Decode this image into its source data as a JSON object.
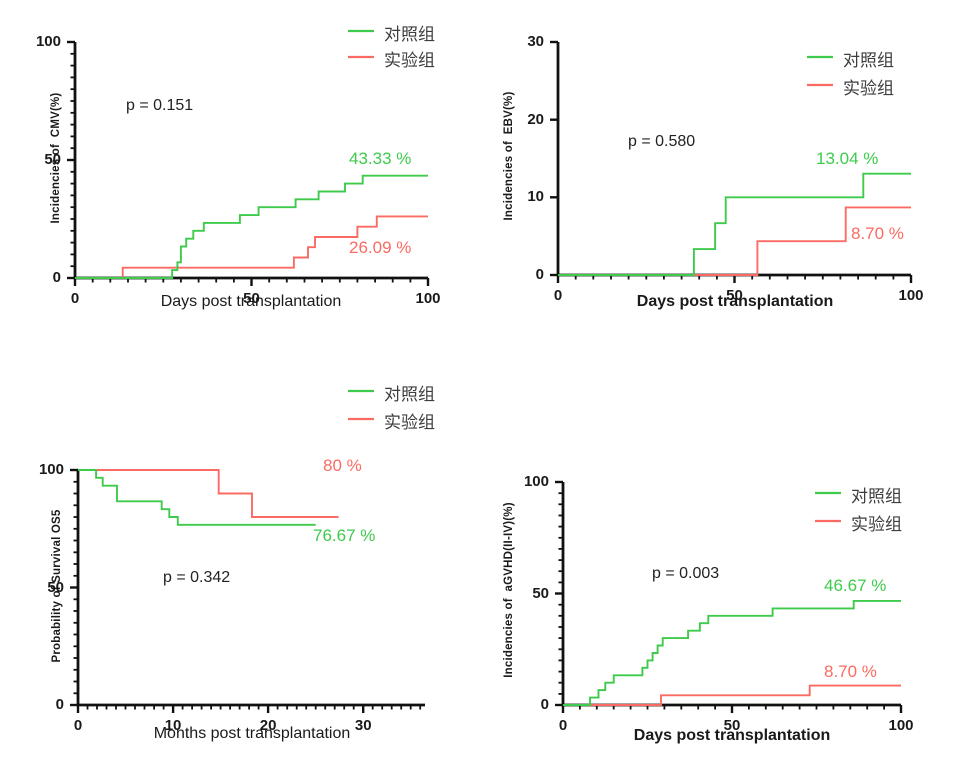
{
  "figure": {
    "background": "#ffffff"
  },
  "colors": {
    "green": "#3ECB4C",
    "red": "#FB6B63",
    "axis": "#111111",
    "text": "#1a1a1a",
    "legend_text": "#3d3d3d"
  },
  "chart_data": [
    {
      "key": "cmv",
      "type": "line",
      "subtype": "kaplan-meier-step",
      "ylabel": "Incidencies of  CMV(%)",
      "xlabel": "Days post transplantation",
      "p_label": "p = 0.151",
      "xlim": [
        0,
        100
      ],
      "ylim": [
        0,
        100
      ],
      "xticks": [
        0,
        50,
        100
      ],
      "yticks": [
        0,
        50,
        100
      ],
      "x_minor": 5,
      "y_minor": 5,
      "legend": [
        {
          "role": "control",
          "label": "对照组",
          "color": "green"
        },
        {
          "role": "experimental",
          "label": "实验组",
          "color": "red"
        }
      ],
      "series": [
        {
          "name": "对照组",
          "role": "control",
          "color": "green",
          "end_label": "43.33 %",
          "end_x": 100,
          "steps": [
            [
              0,
              0
            ],
            [
              27.5,
              3.33
            ],
            [
              29,
              6.67
            ],
            [
              30,
              13.33
            ],
            [
              31.5,
              16.67
            ],
            [
              33.5,
              20
            ],
            [
              36.5,
              23.33
            ],
            [
              46.7,
              26.67
            ],
            [
              52,
              30
            ],
            [
              62.5,
              33.33
            ],
            [
              69,
              36.67
            ],
            [
              76.5,
              40
            ],
            [
              81.5,
              43.33
            ]
          ]
        },
        {
          "name": "实验组",
          "role": "experimental",
          "color": "red",
          "end_label": "26.09 %",
          "end_x": 100,
          "steps": [
            [
              0,
              0
            ],
            [
              13.5,
              4.35
            ],
            [
              62,
              8.7
            ],
            [
              66,
              13.04
            ],
            [
              68,
              17.39
            ],
            [
              80,
              21.74
            ],
            [
              85.5,
              26.09
            ]
          ]
        }
      ]
    },
    {
      "key": "ebv",
      "type": "line",
      "subtype": "kaplan-meier-step",
      "ylabel": "Incidencies of  EBV(%)",
      "xlabel": "Days post transplantation",
      "p_label": "p = 0.580",
      "xlim": [
        0,
        100
      ],
      "ylim": [
        0,
        30
      ],
      "xticks": [
        0,
        50,
        100
      ],
      "yticks": [
        0,
        10,
        20,
        30
      ],
      "x_minor": 5,
      "y_minor": 0,
      "legend": [
        {
          "role": "control",
          "label": "对照组",
          "color": "green"
        },
        {
          "role": "experimental",
          "label": "实验组",
          "color": "red"
        }
      ],
      "series": [
        {
          "name": "对照组",
          "role": "control",
          "color": "green",
          "end_label": "13.04 %",
          "end_x": 100,
          "steps": [
            [
              0,
              0
            ],
            [
              38.5,
              3.33
            ],
            [
              44.5,
              6.67
            ],
            [
              47.5,
              10
            ],
            [
              86.5,
              13.04
            ]
          ]
        },
        {
          "name": "实验组",
          "role": "experimental",
          "color": "red",
          "end_label": "8.70 %",
          "end_x": 100,
          "steps": [
            [
              0,
              0
            ],
            [
              56.5,
              4.35
            ],
            [
              81.5,
              8.7
            ]
          ]
        }
      ]
    },
    {
      "key": "os5",
      "type": "line",
      "subtype": "kaplan-meier-step",
      "ylabel": "Probability of Survival OS5",
      "xlabel": "Months post transplantation",
      "p_label": "p = 0.342",
      "xlim": [
        0,
        36.5
      ],
      "ylim": [
        0,
        100
      ],
      "xticks": [
        0,
        10,
        20,
        30
      ],
      "yticks": [
        0,
        50,
        100
      ],
      "x_minor": 1,
      "y_minor": 5,
      "legend": [
        {
          "role": "control",
          "label": "对照组",
          "color": "green"
        },
        {
          "role": "experimental",
          "label": "实验组",
          "color": "red"
        }
      ],
      "series": [
        {
          "name": "对照组",
          "role": "control",
          "color": "green",
          "end_label": "76.67 %",
          "end_x": 25,
          "steps": [
            [
              0,
              100
            ],
            [
              1.9,
              96.67
            ],
            [
              2.6,
              93.33
            ],
            [
              4.1,
              86.67
            ],
            [
              8.8,
              83.33
            ],
            [
              9.6,
              80
            ],
            [
              10.5,
              76.67
            ]
          ]
        },
        {
          "name": "实验组",
          "role": "experimental",
          "color": "red",
          "end_label": "80 %",
          "end_x": 27.4,
          "steps": [
            [
              0,
              100
            ],
            [
              14.8,
              90
            ],
            [
              18.3,
              80
            ]
          ]
        }
      ]
    },
    {
      "key": "agvhd",
      "type": "line",
      "subtype": "kaplan-meier-step",
      "ylabel": "Incidencies of  aGVHD(II-IV)(%)",
      "xlabel": "Days post transplantation",
      "p_label": "p = 0.003",
      "xlim": [
        0,
        100
      ],
      "ylim": [
        0,
        100
      ],
      "xticks": [
        0,
        50,
        100
      ],
      "yticks": [
        0,
        50,
        100
      ],
      "x_minor": 5,
      "y_minor": 5,
      "legend": [
        {
          "role": "control",
          "label": "对照组",
          "color": "green"
        },
        {
          "role": "experimental",
          "label": "实验组",
          "color": "red"
        }
      ],
      "series": [
        {
          "name": "对照组",
          "role": "control",
          "color": "green",
          "end_label": "46.67 %",
          "end_x": 100,
          "steps": [
            [
              0,
              0
            ],
            [
              8,
              3.33
            ],
            [
              10.5,
              6.67
            ],
            [
              12.5,
              10
            ],
            [
              15,
              13.33
            ],
            [
              23.5,
              16.67
            ],
            [
              25,
              20
            ],
            [
              26.5,
              23.33
            ],
            [
              28,
              26.67
            ],
            [
              29.5,
              30
            ],
            [
              37,
              33.33
            ],
            [
              40.5,
              36.67
            ],
            [
              43,
              40
            ],
            [
              62,
              43.33
            ],
            [
              86,
              46.67
            ]
          ]
        },
        {
          "name": "实验组",
          "role": "experimental",
          "color": "red",
          "end_label": "8.70 %",
          "end_x": 100,
          "steps": [
            [
              0,
              0
            ],
            [
              29,
              4.35
            ],
            [
              73,
              8.7
            ]
          ]
        }
      ]
    }
  ]
}
